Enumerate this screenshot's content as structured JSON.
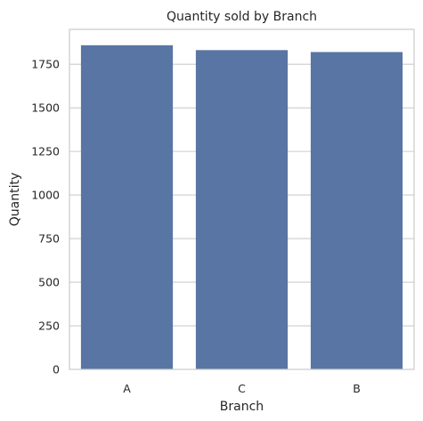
{
  "chart_data": {
    "type": "bar",
    "title": "Quantity sold by Branch",
    "xlabel": "Branch",
    "ylabel": "Quantity",
    "categories": [
      "A",
      "C",
      "B"
    ],
    "values": [
      1859,
      1831,
      1820
    ],
    "ylim": [
      0,
      1950
    ],
    "yticks": [
      0,
      250,
      500,
      750,
      1000,
      1250,
      1500,
      1750
    ],
    "grid": true,
    "bar_color": "#5875a4",
    "background_color": "#ffffff",
    "grid_color": "#cccccc"
  }
}
